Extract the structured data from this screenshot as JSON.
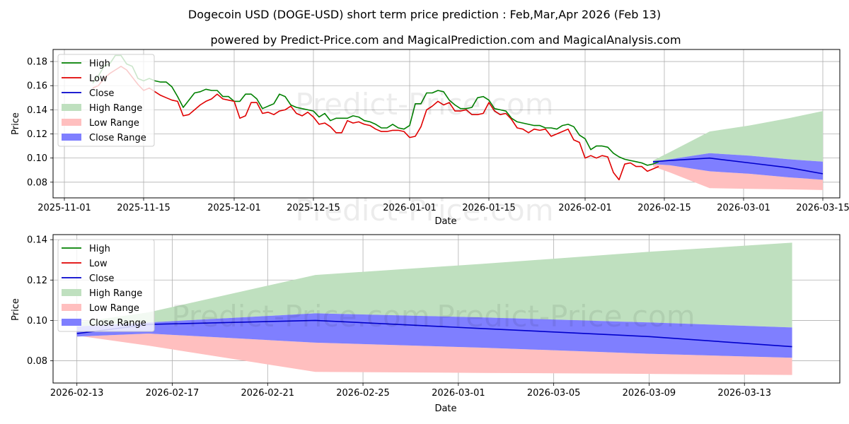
{
  "title": "Dogecoin USD (DOGE-USD) short term price prediction : Feb,Mar,Apr 2026 (Feb 13)",
  "subtitle": "powered by Predict-Price.com and MagicalPrediction.com and MagicalAnalysis.com",
  "watermark": "Predict-Price.com",
  "colors": {
    "high": "#008000",
    "low": "#e00000",
    "close": "#0000cc",
    "high_range": "#bfe0bf",
    "low_range": "#ffbfbf",
    "close_range": "#7f7fff"
  },
  "chart_data": [
    {
      "type": "line",
      "name": "history-and-forecast",
      "xlabel": "Date",
      "ylabel": "Price",
      "xlim": [
        "2025-10-30",
        "2026-03-18"
      ],
      "ylim": [
        0.067,
        0.19
      ],
      "xticks": [
        "2025-11-01",
        "2025-11-15",
        "2025-12-01",
        "2025-12-15",
        "2026-01-01",
        "2026-01-15",
        "2026-02-01",
        "2026-02-15",
        "2026-03-01",
        "2026-03-15"
      ],
      "yticks": [
        "0.08",
        "0.10",
        "0.12",
        "0.14",
        "0.16",
        "0.18"
      ],
      "grid": true,
      "legend_position": "top-left",
      "legend": [
        "High",
        "Low",
        "Close",
        "High Range",
        "Low Range",
        "Close Range"
      ],
      "history": {
        "start_date": "2025-11-06",
        "high": [
          0.162,
          0.168,
          0.176,
          0.178,
          0.185,
          0.185,
          0.178,
          0.176,
          0.166,
          0.164,
          0.166,
          0.164,
          0.163,
          0.163,
          0.159,
          0.151,
          0.142,
          0.148,
          0.154,
          0.155,
          0.157,
          0.156,
          0.156,
          0.151,
          0.151,
          0.147,
          0.147,
          0.153,
          0.153,
          0.149,
          0.141,
          0.143,
          0.145,
          0.153,
          0.151,
          0.144,
          0.142,
          0.141,
          0.14,
          0.139,
          0.134,
          0.137,
          0.131,
          0.133,
          0.133,
          0.133,
          0.135,
          0.134,
          0.131,
          0.13,
          0.128,
          0.125,
          0.125,
          0.128,
          0.125,
          0.124,
          0.127,
          0.145,
          0.145,
          0.154,
          0.154,
          0.156,
          0.155,
          0.148,
          0.144,
          0.141,
          0.141,
          0.142,
          0.15,
          0.151,
          0.148,
          0.141,
          0.14,
          0.139,
          0.133,
          0.13,
          0.129,
          0.128,
          0.127,
          0.127,
          0.125,
          0.125,
          0.124,
          0.127,
          0.128,
          0.126,
          0.119,
          0.116,
          0.107,
          0.11,
          0.11,
          0.109,
          0.104,
          0.101,
          0.099,
          0.098,
          0.097,
          0.096,
          0.094,
          0.095,
          0.097
        ],
        "low": [
          0.158,
          0.16,
          0.166,
          0.17,
          0.173,
          0.176,
          0.173,
          0.167,
          0.161,
          0.156,
          0.158,
          0.155,
          0.152,
          0.15,
          0.148,
          0.147,
          0.135,
          0.136,
          0.14,
          0.144,
          0.147,
          0.149,
          0.153,
          0.149,
          0.148,
          0.147,
          0.133,
          0.135,
          0.146,
          0.146,
          0.137,
          0.138,
          0.136,
          0.139,
          0.14,
          0.143,
          0.137,
          0.135,
          0.138,
          0.134,
          0.128,
          0.129,
          0.126,
          0.121,
          0.121,
          0.131,
          0.129,
          0.13,
          0.128,
          0.127,
          0.124,
          0.122,
          0.122,
          0.123,
          0.123,
          0.122,
          0.117,
          0.118,
          0.126,
          0.14,
          0.143,
          0.147,
          0.144,
          0.146,
          0.139,
          0.139,
          0.14,
          0.136,
          0.136,
          0.137,
          0.146,
          0.139,
          0.136,
          0.137,
          0.132,
          0.125,
          0.124,
          0.121,
          0.124,
          0.123,
          0.124,
          0.118,
          0.12,
          0.122,
          0.124,
          0.115,
          0.113,
          0.1,
          0.102,
          0.1,
          0.102,
          0.101,
          0.088,
          0.082,
          0.095,
          0.096,
          0.093,
          0.093,
          0.089,
          0.091,
          0.093
        ]
      },
      "forecast_dates": [
        "2026-02-13",
        "2026-02-16",
        "2026-02-23",
        "2026-03-02",
        "2026-03-09",
        "2026-03-15"
      ],
      "close": [
        0.097,
        0.098,
        0.1,
        0.096,
        0.092,
        0.087
      ],
      "high_range_upper": [
        0.098,
        0.105,
        0.122,
        0.127,
        0.133,
        0.139
      ],
      "low_range_lower": [
        0.093,
        0.088,
        0.075,
        0.0745,
        0.074,
        0.0735
      ],
      "close_range_upper": [
        0.097,
        0.099,
        0.104,
        0.102,
        0.099,
        0.097
      ],
      "close_range_lower": [
        0.095,
        0.094,
        0.089,
        0.087,
        0.084,
        0.082
      ]
    },
    {
      "type": "line",
      "name": "forecast-zoom",
      "xlabel": "Date",
      "ylabel": "Price",
      "xlim": [
        "2026-02-12",
        "2026-03-17"
      ],
      "ylim": [
        0.069,
        0.1425
      ],
      "xticks": [
        "2026-02-13",
        "2026-02-17",
        "2026-02-21",
        "2026-02-25",
        "2026-03-01",
        "2026-03-05",
        "2026-03-09",
        "2026-03-13"
      ],
      "yticks": [
        "0.08",
        "0.10",
        "0.12",
        "0.14"
      ],
      "grid": true,
      "legend_position": "top-left",
      "legend": [
        "High",
        "Low",
        "Close",
        "High Range",
        "Low Range",
        "Close Range"
      ],
      "forecast_dates": [
        "2026-02-13",
        "2026-02-16",
        "2026-02-23",
        "2026-03-02",
        "2026-03-09",
        "2026-03-15"
      ],
      "close": [
        0.0935,
        0.098,
        0.1,
        0.096,
        0.092,
        0.087
      ],
      "high_range_upper": [
        0.099,
        0.104,
        0.1225,
        0.128,
        0.134,
        0.1385
      ],
      "low_range_lower": [
        0.0925,
        0.0875,
        0.0745,
        0.074,
        0.0735,
        0.073
      ],
      "close_range_upper": [
        0.097,
        0.099,
        0.1035,
        0.1015,
        0.099,
        0.0965
      ],
      "close_range_lower": [
        0.092,
        0.0935,
        0.089,
        0.0865,
        0.0835,
        0.0815
      ]
    }
  ]
}
